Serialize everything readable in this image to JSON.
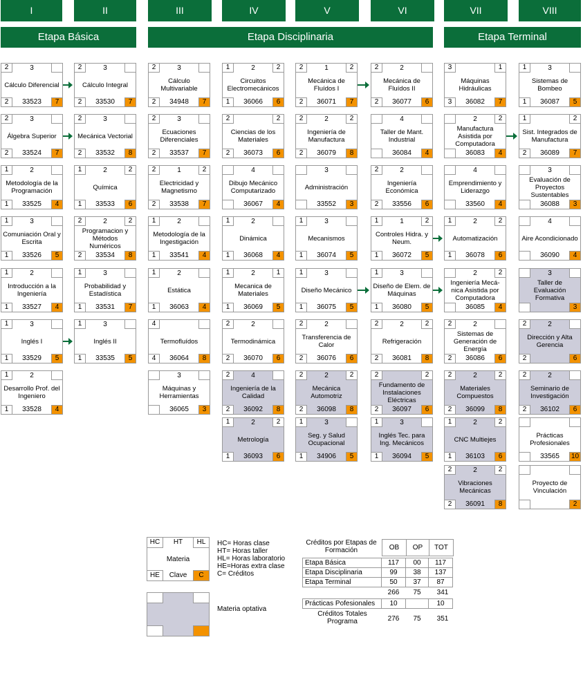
{
  "semesters": [
    "I",
    "II",
    "III",
    "IV",
    "V",
    "VI",
    "VII",
    "VIII"
  ],
  "stages": [
    "Etapa Básica",
    "Etapa Disciplinaria",
    "Etapa Terminal"
  ],
  "courses": [
    {
      "col": 0,
      "row": 0,
      "hc": "2",
      "ht": "3",
      "hl": "",
      "he": "2",
      "clave": "33523",
      "cr": "7",
      "name": "Cálculo Diferencial",
      "opt": false
    },
    {
      "col": 1,
      "row": 0,
      "hc": "2",
      "ht": "3",
      "hl": "",
      "he": "2",
      "clave": "33530",
      "cr": "7",
      "name": "Cálculo Integral",
      "opt": false
    },
    {
      "col": 2,
      "row": 0,
      "hc": "2",
      "ht": "3",
      "hl": "",
      "he": "2",
      "clave": "34948",
      "cr": "7",
      "name": "Cálculo Multivariable",
      "opt": false
    },
    {
      "col": 3,
      "row": 0,
      "hc": "1",
      "ht": "2",
      "hl": "2",
      "he": "1",
      "clave": "36066",
      "cr": "6",
      "name": "Circuitos Electromecánicos",
      "opt": false
    },
    {
      "col": 4,
      "row": 0,
      "hc": "2",
      "ht": "1",
      "hl": "2",
      "he": "2",
      "clave": "36071",
      "cr": "7",
      "name": "Mecánica de Fluídos I",
      "opt": false
    },
    {
      "col": 5,
      "row": 0,
      "hc": "2",
      "ht": "2",
      "hl": "",
      "he": "2",
      "clave": "36077",
      "cr": "6",
      "name": "Mecánica de Fluídos II",
      "opt": false
    },
    {
      "col": 6,
      "row": 0,
      "hc": "3",
      "ht": "",
      "hl": "1",
      "he": "3",
      "clave": "36082",
      "cr": "7",
      "name": "Máquinas Hidráulicas",
      "opt": false
    },
    {
      "col": 7,
      "row": 0,
      "hc": "1",
      "ht": "3",
      "hl": "",
      "he": "1",
      "clave": "36087",
      "cr": "5",
      "name": "Sistemas de Bombeo",
      "opt": false
    },
    {
      "col": 0,
      "row": 1,
      "hc": "2",
      "ht": "3",
      "hl": "",
      "he": "2",
      "clave": "33524",
      "cr": "7",
      "name": "Álgebra Superior",
      "opt": false
    },
    {
      "col": 1,
      "row": 1,
      "hc": "2",
      "ht": "3",
      "hl": "",
      "he": "2",
      "clave": "33532",
      "cr": "8",
      "name": "Mecánica Vectorial",
      "opt": false
    },
    {
      "col": 2,
      "row": 1,
      "hc": "2",
      "ht": "3",
      "hl": "",
      "he": "2",
      "clave": "33537",
      "cr": "7",
      "name": "Ecuaciones Diferenciales",
      "opt": false
    },
    {
      "col": 3,
      "row": 1,
      "hc": "2",
      "ht": "",
      "hl": "2",
      "he": "2",
      "clave": "36073",
      "cr": "6",
      "name": "Ciencias de los Materiales",
      "opt": false
    },
    {
      "col": 4,
      "row": 1,
      "hc": "2",
      "ht": "2",
      "hl": "2",
      "he": "2",
      "clave": "36079",
      "cr": "8",
      "name": "Ingeniería de Manufactura",
      "opt": false
    },
    {
      "col": 5,
      "row": 1,
      "hc": "",
      "ht": "4",
      "hl": "",
      "he": "",
      "clave": "36084",
      "cr": "4",
      "name": "Taller de Mant. Industrial",
      "opt": false
    },
    {
      "col": 6,
      "row": 1,
      "hc": "",
      "ht": "2",
      "hl": "2",
      "he": "",
      "clave": "36083",
      "cr": "4",
      "name": "Manufactura Asistida por Computadora",
      "opt": false
    },
    {
      "col": 7,
      "row": 1,
      "hc": "1",
      "ht": "",
      "hl": "2",
      "he": "2",
      "clave": "36089",
      "cr": "7",
      "name": "Sist. Integrados de Manufactura",
      "opt": false
    },
    {
      "col": 0,
      "row": 2,
      "hc": "1",
      "ht": "2",
      "hl": "",
      "he": "1",
      "clave": "33525",
      "cr": "4",
      "name": "Metodología de la Programación",
      "opt": false
    },
    {
      "col": 1,
      "row": 2,
      "hc": "1",
      "ht": "2",
      "hl": "2",
      "he": "1",
      "clave": "33533",
      "cr": "6",
      "name": "Química",
      "opt": false
    },
    {
      "col": 2,
      "row": 2,
      "hc": "2",
      "ht": "1",
      "hl": "2",
      "he": "2",
      "clave": "33538",
      "cr": "7",
      "name": "Electricidad y Magnetismo",
      "opt": false
    },
    {
      "col": 3,
      "row": 2,
      "hc": "",
      "ht": "4",
      "hl": "",
      "he": "",
      "clave": "36067",
      "cr": "4",
      "name": "Dibujo Mecánico Computarizado",
      "opt": false
    },
    {
      "col": 4,
      "row": 2,
      "hc": "",
      "ht": "3",
      "hl": "",
      "he": "",
      "clave": "33552",
      "cr": "3",
      "name": "Administración",
      "opt": false
    },
    {
      "col": 5,
      "row": 2,
      "hc": "2",
      "ht": "2",
      "hl": "",
      "he": "2",
      "clave": "33556",
      "cr": "6",
      "name": "Ingeniería Económica",
      "opt": false
    },
    {
      "col": 6,
      "row": 2,
      "hc": "",
      "ht": "4",
      "hl": "",
      "he": "",
      "clave": "33560",
      "cr": "4",
      "name": "Emprendimiento y Liderazgo",
      "opt": false
    },
    {
      "col": 7,
      "row": 2,
      "hc": "",
      "ht": "3",
      "hl": "",
      "he": "",
      "clave": "36088",
      "cr": "3",
      "name": "Evaluación de Proyectos Sustentables",
      "opt": false
    },
    {
      "col": 0,
      "row": 3,
      "hc": "1",
      "ht": "3",
      "hl": "",
      "he": "1",
      "clave": "33526",
      "cr": "5",
      "name": "Comuniación Oral y Escrita",
      "opt": false
    },
    {
      "col": 1,
      "row": 3,
      "hc": "2",
      "ht": "2",
      "hl": "2",
      "he": "2",
      "clave": "33534",
      "cr": "8",
      "name": "Programacion y Métodos Numéricos",
      "opt": false
    },
    {
      "col": 2,
      "row": 3,
      "hc": "1",
      "ht": "2",
      "hl": "",
      "he": "1",
      "clave": "33541",
      "cr": "4",
      "name": "Metodología de la Ingestigación",
      "opt": false
    },
    {
      "col": 3,
      "row": 3,
      "hc": "1",
      "ht": "2",
      "hl": "",
      "he": "1",
      "clave": "36068",
      "cr": "4",
      "name": "Dinámica",
      "opt": false
    },
    {
      "col": 4,
      "row": 3,
      "hc": "1",
      "ht": "3",
      "hl": "",
      "he": "1",
      "clave": "36074",
      "cr": "5",
      "name": "Mecanismos",
      "opt": false
    },
    {
      "col": 5,
      "row": 3,
      "hc": "1",
      "ht": "1",
      "hl": "2",
      "he": "1",
      "clave": "36072",
      "cr": "5",
      "name": "Controles Hidra. y Neum.",
      "opt": false
    },
    {
      "col": 6,
      "row": 3,
      "hc": "1",
      "ht": "2",
      "hl": "2",
      "he": "1",
      "clave": "36078",
      "cr": "6",
      "name": "Automatización",
      "opt": false
    },
    {
      "col": 7,
      "row": 3,
      "hc": "",
      "ht": "4",
      "hl": "",
      "he": "",
      "clave": "36090",
      "cr": "4",
      "name": "Aire Acondicionado",
      "opt": false
    },
    {
      "col": 0,
      "row": 4,
      "hc": "1",
      "ht": "2",
      "hl": "",
      "he": "1",
      "clave": "33527",
      "cr": "4",
      "name": "Introducción a la Ingeniería",
      "opt": false
    },
    {
      "col": 1,
      "row": 4,
      "hc": "1",
      "ht": "3",
      "hl": "",
      "he": "1",
      "clave": "33531",
      "cr": "7",
      "name": "Probabilidad y Estadística",
      "opt": false
    },
    {
      "col": 2,
      "row": 4,
      "hc": "1",
      "ht": "2",
      "hl": "",
      "he": "1",
      "clave": "36063",
      "cr": "4",
      "name": "Estática",
      "opt": false
    },
    {
      "col": 3,
      "row": 4,
      "hc": "1",
      "ht": "2",
      "hl": "1",
      "he": "1",
      "clave": "36069",
      "cr": "5",
      "name": "Mecanica de Materiales",
      "opt": false
    },
    {
      "col": 4,
      "row": 4,
      "hc": "1",
      "ht": "3",
      "hl": "",
      "he": "1",
      "clave": "36075",
      "cr": "5",
      "name": "Diseño Mecánico",
      "opt": false
    },
    {
      "col": 5,
      "row": 4,
      "hc": "1",
      "ht": "3",
      "hl": "",
      "he": "1",
      "clave": "36080",
      "cr": "5",
      "name": "Diseño de Elem. de Máquinas",
      "opt": false
    },
    {
      "col": 6,
      "row": 4,
      "hc": "",
      "ht": "2",
      "hl": "2",
      "he": "",
      "clave": "36085",
      "cr": "4",
      "name": "Ingeniería Mecá- nica Asistida por Computadora",
      "opt": false
    },
    {
      "col": 7,
      "row": 4,
      "hc": "",
      "ht": "3",
      "hl": "",
      "he": "",
      "clave": "",
      "cr": "3",
      "name": "Taller de Evaluación Formativa",
      "opt": true
    },
    {
      "col": 0,
      "row": 5,
      "hc": "1",
      "ht": "3",
      "hl": "",
      "he": "1",
      "clave": "33529",
      "cr": "5",
      "name": "Inglés I",
      "opt": false
    },
    {
      "col": 1,
      "row": 5,
      "hc": "1",
      "ht": "3",
      "hl": "",
      "he": "1",
      "clave": "33535",
      "cr": "5",
      "name": "Inglés II",
      "opt": false
    },
    {
      "col": 2,
      "row": 5,
      "hc": "4",
      "ht": "",
      "hl": "",
      "he": "4",
      "clave": "36064",
      "cr": "8",
      "name": "Termofluídos",
      "opt": false
    },
    {
      "col": 3,
      "row": 5,
      "hc": "2",
      "ht": "2",
      "hl": "",
      "he": "2",
      "clave": "36070",
      "cr": "6",
      "name": "Termodinámica",
      "opt": false
    },
    {
      "col": 4,
      "row": 5,
      "hc": "2",
      "ht": "2",
      "hl": "",
      "he": "2",
      "clave": "36076",
      "cr": "6",
      "name": "Transferencia de Calor",
      "opt": false
    },
    {
      "col": 5,
      "row": 5,
      "hc": "2",
      "ht": "2",
      "hl": "2",
      "he": "2",
      "clave": "36081",
      "cr": "8",
      "name": "Refrigeración",
      "opt": false
    },
    {
      "col": 6,
      "row": 5,
      "hc": "2",
      "ht": "2",
      "hl": "",
      "he": "2",
      "clave": "36086",
      "cr": "6",
      "name": "Sistemas de Generación de Energía",
      "opt": false
    },
    {
      "col": 7,
      "row": 5,
      "hc": "2",
      "ht": "2",
      "hl": "",
      "he": "2",
      "clave": "",
      "cr": "6",
      "name": "Dirección y Alta Gerencia",
      "opt": true
    },
    {
      "col": 0,
      "row": 6,
      "hc": "1",
      "ht": "2",
      "hl": "",
      "he": "1",
      "clave": "33528",
      "cr": "4",
      "name": "Desarrollo Prof. del Ingeniero",
      "opt": false
    },
    {
      "col": 2,
      "row": 6,
      "hc": "",
      "ht": "3",
      "hl": "",
      "he": "",
      "clave": "36065",
      "cr": "3",
      "name": "Máquinas y Herramientas",
      "opt": false
    },
    {
      "col": 3,
      "row": 6,
      "hc": "2",
      "ht": "4",
      "hl": "",
      "he": "2",
      "clave": "36092",
      "cr": "8",
      "name": "Ingeniería de la Calidad",
      "opt": true
    },
    {
      "col": 4,
      "row": 6,
      "hc": "2",
      "ht": "2",
      "hl": "2",
      "he": "2",
      "clave": "36098",
      "cr": "8",
      "name": "Mecánica Automotriz",
      "opt": true
    },
    {
      "col": 5,
      "row": 6,
      "hc": "2",
      "ht": "",
      "hl": "2",
      "he": "2",
      "clave": "36097",
      "cr": "6",
      "name": "Fundamento de Instalaciones Eléctricas",
      "opt": true
    },
    {
      "col": 6,
      "row": 6,
      "hc": "2",
      "ht": "2",
      "hl": "2",
      "he": "2",
      "clave": "36099",
      "cr": "8",
      "name": "Materiales Compuestos",
      "opt": true
    },
    {
      "col": 7,
      "row": 6,
      "hc": "2",
      "ht": "2",
      "hl": "",
      "he": "2",
      "clave": "36102",
      "cr": "6",
      "name": "Seminario de Investigación",
      "opt": true
    },
    {
      "col": 3,
      "row": 7,
      "hc": "1",
      "ht": "2",
      "hl": "2",
      "he": "1",
      "clave": "36093",
      "cr": "6",
      "name": "Metrología",
      "opt": true
    },
    {
      "col": 4,
      "row": 7,
      "hc": "1",
      "ht": "3",
      "hl": "",
      "he": "1",
      "clave": "34906",
      "cr": "5",
      "name": "Seg. y Salud Ocupacional",
      "opt": true
    },
    {
      "col": 5,
      "row": 7,
      "hc": "1",
      "ht": "3",
      "hl": "",
      "he": "1",
      "clave": "36094",
      "cr": "5",
      "name": "Inglés Tec. para Ing. Mecánicos",
      "opt": true
    },
    {
      "col": 6,
      "row": 7,
      "hc": "1",
      "ht": "2",
      "hl": "2",
      "he": "1",
      "clave": "36103",
      "cr": "6",
      "name": "CNC Multiejes",
      "opt": true
    },
    {
      "col": 7,
      "row": 7,
      "hc": "",
      "ht": "",
      "hl": "",
      "he": "",
      "clave": "33565",
      "cr": "10",
      "name": "Prácticas Profesionales",
      "opt": false
    },
    {
      "col": 6,
      "row": 8,
      "hc": "2",
      "ht": "2",
      "hl": "2",
      "he": "2",
      "clave": "36091",
      "cr": "8",
      "name": "Vibraciones Mecánicas",
      "opt": true
    },
    {
      "col": 7,
      "row": 8,
      "hc": "",
      "ht": "",
      "hl": "",
      "he": "",
      "clave": "",
      "cr": "2",
      "name": "Proyecto de Vinculación",
      "opt": false
    }
  ],
  "arrows": [
    {
      "col": 0,
      "row": 0
    },
    {
      "col": 4,
      "row": 0
    },
    {
      "col": 0,
      "row": 1
    },
    {
      "col": 6,
      "row": 1
    },
    {
      "col": 5,
      "row": 3
    },
    {
      "col": 4,
      "row": 4
    },
    {
      "col": 5,
      "row": 4
    },
    {
      "col": 0,
      "row": 5
    }
  ],
  "legend": {
    "hc": "HC",
    "ht": "HT",
    "hl": "HL",
    "materia": "Materia",
    "he": "HE",
    "clave": "Clave",
    "c": "C",
    "lines": [
      "HC= Horas clase",
      "HT= Horas taller",
      "HL= Horas laboratorio",
      "HE=Horas extra clase",
      "C= Créditos"
    ],
    "optativa": "Materia optativa"
  },
  "credits": {
    "title": "Créditos por Etapas de Formación",
    "headers": [
      "OB",
      "OP",
      "TOT"
    ],
    "rows": [
      {
        "label": "Etapa Básica",
        "ob": "117",
        "op": "00",
        "tot": "117"
      },
      {
        "label": "Etapa Disciplinaria",
        "ob": "99",
        "op": "38",
        "tot": "137"
      },
      {
        "label": "Etapa Terminal",
        "ob": "50",
        "op": "37",
        "tot": "87"
      }
    ],
    "subtotal": {
      "ob": "266",
      "op": "75",
      "tot": "341"
    },
    "practicas": {
      "label": "Prácticas Pofesionales",
      "ob": "10",
      "op": "",
      "tot": "10"
    },
    "total": {
      "label": "Créditos Totales Programa",
      "ob": "276",
      "op": "75",
      "tot": "351"
    }
  },
  "colors": {
    "green": "#0b6e3a",
    "orange": "#f39200",
    "optional": "#cdcdda"
  }
}
